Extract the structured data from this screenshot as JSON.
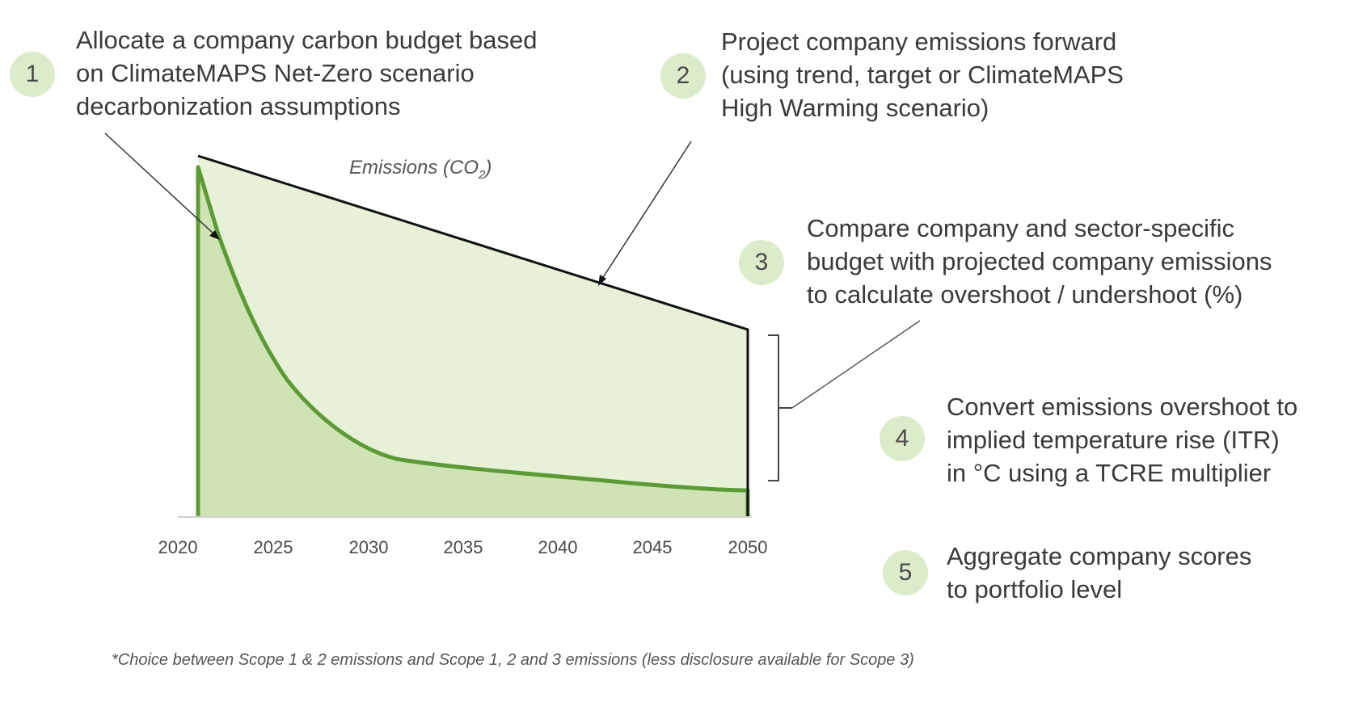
{
  "steps": [
    {
      "number": "1",
      "lines": [
        "Allocate a company carbon budget based",
        "on ClimateMAPS Net-Zero scenario",
        "decarbonization assumptions"
      ]
    },
    {
      "number": "2",
      "lines": [
        "Project company emissions forward",
        "(using trend, target or ClimateMAPS",
        "High Warming scenario)"
      ]
    },
    {
      "number": "3",
      "lines": [
        "Compare company and sector-specific",
        "budget with projected company emissions",
        "to calculate overshoot /  undershoot (%)"
      ]
    },
    {
      "number": "4",
      "lines": [
        "Convert emissions overshoot to",
        "implied temperature rise (ITR)",
        "in °C using a TCRE multiplier"
      ]
    },
    {
      "number": "5",
      "lines": [
        "Aggregate company scores",
        "to portfolio level"
      ]
    }
  ],
  "chart": {
    "label_main": "Emissions (CO",
    "label_sub": "2",
    "label_close": ")",
    "x_ticks": [
      "2020",
      "2025",
      "2030",
      "2035",
      "2040",
      "2045",
      "2050"
    ]
  },
  "footnote": "*Choice between Scope 1 & 2 emissions and Scope 1, 2 and 3 emissions (less disclosure available for Scope 3)",
  "colors": {
    "light_fill": "#e6f1d8",
    "budget_fill": "#cfe3b4",
    "budget_line": "#5b9a35",
    "badge": "#dcebc9"
  }
}
